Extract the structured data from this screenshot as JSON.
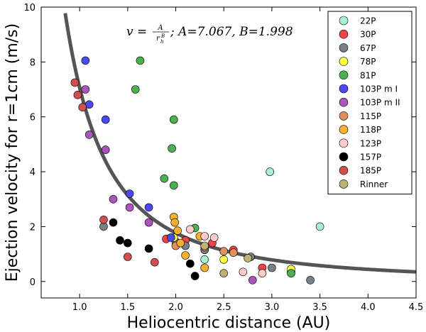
{
  "chart_data": {
    "type": "scatter",
    "xlabel": "Heliocentric distance (AU)",
    "ylabel": "Ejection velocity for r=1cm (m/s)",
    "xlim": [
      0.6,
      4.5
    ],
    "ylim": [
      -0.6,
      10
    ],
    "xticks": [
      "1.0",
      "1.5",
      "2.0",
      "2.5",
      "3.0",
      "3.5",
      "4.0",
      "4.5"
    ],
    "yticks": [
      "0",
      "2",
      "4",
      "6",
      "8",
      "10"
    ],
    "xtick_values": [
      1.0,
      1.5,
      2.0,
      2.5,
      3.0,
      3.5,
      4.0,
      4.5
    ],
    "ytick_values": [
      0,
      2,
      4,
      6,
      8,
      10
    ],
    "fit": {
      "A": 7.067,
      "B": 1.998,
      "label_lhs": "v = ",
      "label_num": "A",
      "label_den": "r",
      "label_den_sub": "h",
      "label_den_sup": "B",
      "label_params": "; A=7.067, B=1.998",
      "color": "#555555"
    },
    "legend_position": "top-right",
    "series": [
      {
        "name": "22P",
        "color": "#a7f0d0",
        "points": [
          [
            2.98,
            4.0
          ],
          [
            3.5,
            2.0
          ],
          [
            2.3,
            0.8
          ]
        ]
      },
      {
        "name": "30P",
        "color": "#ee4444",
        "points": [
          [
            1.9,
            1.55
          ],
          [
            2.1,
            1.5
          ],
          [
            2.38,
            1.4
          ],
          [
            2.6,
            1.15
          ],
          [
            2.9,
            0.5
          ],
          [
            3.2,
            0.35
          ]
        ]
      },
      {
        "name": "67P",
        "color": "#777f88",
        "points": [
          [
            1.25,
            2.0
          ],
          [
            2.0,
            1.45
          ],
          [
            2.1,
            1.3
          ],
          [
            2.3,
            1.15
          ],
          [
            2.78,
            0.9
          ],
          [
            3.0,
            0.5
          ],
          [
            3.4,
            0.05
          ]
        ]
      },
      {
        "name": "78P",
        "color": "#ffff44",
        "points": [
          [
            1.98,
            1.6
          ],
          [
            2.5,
            0.8
          ],
          [
            3.2,
            0.45
          ]
        ]
      },
      {
        "name": "81P",
        "color": "#4caf50",
        "points": [
          [
            1.63,
            8.05
          ],
          [
            1.58,
            7.0
          ],
          [
            1.98,
            5.9
          ],
          [
            1.96,
            4.85
          ],
          [
            1.88,
            3.75
          ],
          [
            1.98,
            3.5
          ],
          [
            2.2,
            1.95
          ],
          [
            3.2,
            0.3
          ]
        ]
      },
      {
        "name": "103P m I",
        "color": "#4a4af0",
        "points": [
          [
            1.06,
            8.05
          ],
          [
            1.1,
            6.45
          ],
          [
            1.27,
            5.9
          ],
          [
            1.52,
            3.2
          ],
          [
            1.72,
            2.7
          ],
          [
            1.95,
            1.6
          ]
        ]
      },
      {
        "name": "103P m II",
        "color": "#aa55bb",
        "points": [
          [
            1.06,
            7.0
          ],
          [
            1.1,
            5.35
          ],
          [
            1.27,
            4.8
          ],
          [
            1.35,
            3.0
          ],
          [
            1.52,
            2.7
          ],
          [
            1.72,
            2.15
          ],
          [
            2.8,
            0.05
          ]
        ]
      },
      {
        "name": "115P",
        "color": "#e0905a",
        "points": [
          [
            2.0,
            1.3
          ],
          [
            2.3,
            1.25
          ],
          [
            2.5,
            1.1
          ],
          [
            2.6,
            1.05
          ]
        ]
      },
      {
        "name": "118P",
        "color": "#f5b030",
        "points": [
          [
            1.98,
            2.35
          ],
          [
            1.99,
            2.15
          ],
          [
            2.02,
            1.85
          ],
          [
            2.1,
            0.95
          ],
          [
            2.25,
            1.65
          ],
          [
            2.3,
            0.5
          ],
          [
            2.05,
            1.4
          ]
        ]
      },
      {
        "name": "123P",
        "color": "#ffcccc",
        "points": [
          [
            2.15,
            1.9
          ],
          [
            2.3,
            1.65
          ],
          [
            2.4,
            1.6
          ],
          [
            2.7,
            0.35
          ],
          [
            2.9,
            0.3
          ]
        ]
      },
      {
        "name": "157P",
        "color": "#000000",
        "points": [
          [
            1.35,
            2.15
          ],
          [
            1.42,
            1.5
          ],
          [
            1.5,
            1.4
          ],
          [
            1.72,
            1.2
          ],
          [
            2.15,
            0.65
          ],
          [
            2.2,
            0.2
          ]
        ]
      },
      {
        "name": "185P",
        "color": "#d05050",
        "points": [
          [
            0.95,
            7.25
          ],
          [
            0.98,
            6.8
          ],
          [
            1.03,
            6.35
          ],
          [
            1.25,
            2.25
          ],
          [
            1.5,
            0.9
          ],
          [
            1.78,
            0.7
          ]
        ]
      },
      {
        "name": "Rinner",
        "color": "#bdb173",
        "points": [
          [
            2.3,
            1.3
          ],
          [
            2.5,
            0.3
          ],
          [
            2.75,
            0.85
          ]
        ]
      }
    ]
  }
}
